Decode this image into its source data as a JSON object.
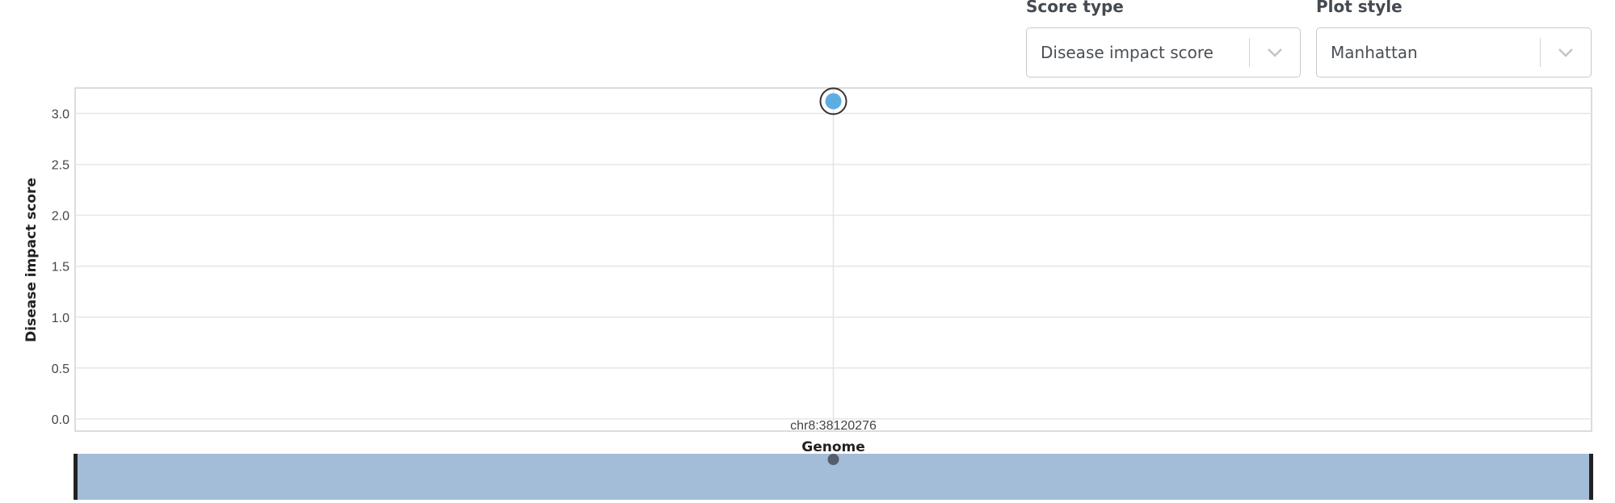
{
  "controls": {
    "score_type": {
      "label": "Score type",
      "value": "Disease impact score",
      "icon": "chevron-down-icon"
    },
    "plot_style": {
      "label": "Plot style",
      "value": "Manhattan",
      "icon": "chevron-down-icon"
    }
  },
  "chart_data": {
    "type": "scatter",
    "ylabel": "Disease impact score",
    "xlabel": "Genome",
    "ylim": [
      -0.12,
      3.25
    ],
    "y_ticks": [
      0.0,
      0.5,
      1.0,
      1.5,
      2.0,
      2.5,
      3.0
    ],
    "x_ticks": [
      "chr8:38120276"
    ],
    "grid": true,
    "points": [
      {
        "x": "chr8:38120276",
        "y": 3.12,
        "highlighted": true,
        "color": "#5dade2"
      }
    ],
    "navigator": {
      "fill": "#a3bcd8",
      "point_color": "#555e6b"
    }
  }
}
